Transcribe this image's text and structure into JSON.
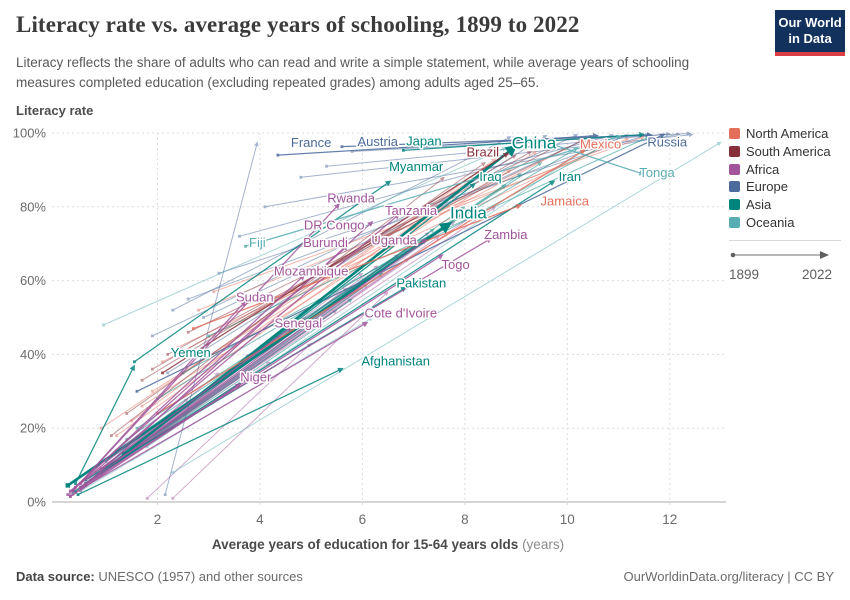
{
  "header": {
    "subtitle": "Literacy reflects the share of adults who can read and write a simple statement, while average years of schooling measures completed education (excluding repeated grades) among adults aged 25–65.",
    "logo": {
      "line1": "Our World",
      "line2": "in Data"
    }
  },
  "legend": {
    "items": [
      {
        "label": "North America",
        "color": "#e56e5a"
      },
      {
        "label": "South America",
        "color": "#883039"
      },
      {
        "label": "Africa",
        "color": "#a2559c"
      },
      {
        "label": "Europe",
        "color": "#4c6a9c"
      },
      {
        "label": "Asia",
        "color": "#00847e"
      },
      {
        "label": "Oceania",
        "color": "#58acb3"
      }
    ],
    "timeline": {
      "start": "1899",
      "end": "2022"
    }
  },
  "chart_data": {
    "type": "connected-scatter",
    "title": "Literacy rate vs. average years of schooling, 1899 to 2022",
    "xlabel": "Average years of education for 15-64 years olds",
    "xlabel_unit": "(years)",
    "ylabel": "Literacy rate",
    "xlim": [
      0,
      13
    ],
    "ylim": [
      0,
      100
    ],
    "xticks": [
      2,
      4,
      6,
      8,
      10,
      12
    ],
    "yticks": [
      0,
      20,
      40,
      60,
      80,
      100
    ],
    "ytick_suffix": "%",
    "grid": true,
    "legend_position": "right",
    "arrow_note": "arrows run from 1899 to 2022",
    "regions": {
      "North America": "#e56e5a",
      "South America": "#883039",
      "Africa": "#a2559c",
      "Europe": "#4c6a9c",
      "Asia": "#00847e",
      "Oceania": "#58acb3"
    },
    "series": [
      {
        "name": "France",
        "region": "Europe",
        "from": [
          4.35,
          94
        ],
        "to": [
          10.6,
          99.3
        ],
        "label_at": [
          5.0,
          97.4
        ]
      },
      {
        "name": "Austria",
        "region": "Europe",
        "from": [
          5.6,
          96.3
        ],
        "to": [
          11.65,
          99.5
        ],
        "label_at": [
          6.3,
          97.6
        ]
      },
      {
        "name": "Russia",
        "region": "Europe",
        "from": [
          1.6,
          30
        ],
        "to": [
          11.9,
          99.7
        ],
        "label_at": [
          11.95,
          97.5
        ]
      },
      {
        "name": "Japan",
        "region": "Asia",
        "from": [
          6.8,
          95.3
        ],
        "to": [
          11.5,
          99.6
        ],
        "label_at": [
          7.2,
          97.8
        ]
      },
      {
        "name": "China",
        "region": "Asia",
        "from": [
          1.35,
          13
        ],
        "to": [
          9.0,
          96.5
        ],
        "label_at": [
          9.35,
          97.3
        ],
        "size": "lg"
      },
      {
        "name": "Myanmar",
        "region": "Asia",
        "from": [
          1.55,
          38
        ],
        "to": [
          6.55,
          87
        ],
        "label_at": [
          7.05,
          90.8
        ]
      },
      {
        "name": "Iraq",
        "region": "Asia",
        "from": [
          0.6,
          5
        ],
        "to": [
          8.2,
          86.3
        ],
        "label_at": [
          8.5,
          88.2
        ]
      },
      {
        "name": "Iran",
        "region": "Asia",
        "from": [
          0.9,
          8
        ],
        "to": [
          9.75,
          87
        ],
        "label_at": [
          10.05,
          88.2
        ]
      },
      {
        "name": "India",
        "region": "Asia",
        "from": [
          0.25,
          4.5
        ],
        "to": [
          7.72,
          75.6
        ],
        "label_at": [
          8.07,
          78.3
        ],
        "size": "lg"
      },
      {
        "name": "Pakistan",
        "region": "Asia",
        "from": [
          0.6,
          6
        ],
        "to": [
          6.85,
          58.2
        ],
        "label_at": [
          7.15,
          59.3
        ]
      },
      {
        "name": "Cote d'Ivoire",
        "region": "Africa",
        "from": [
          0.5,
          3.5
        ],
        "to": [
          6.1,
          48.7
        ],
        "label_at": [
          6.75,
          51.2
        ]
      },
      {
        "name": "Afghanistan",
        "region": "Asia",
        "from": [
          0.45,
          2
        ],
        "to": [
          5.62,
          36.2
        ],
        "label_at": [
          6.65,
          38.2
        ]
      },
      {
        "name": "Yemen",
        "region": "Asia",
        "from": [
          0.4,
          5
        ],
        "to": [
          1.55,
          37
        ],
        "label_at": [
          2.65,
          40.5
        ]
      },
      {
        "name": "Mexico",
        "region": "North America",
        "from": [
          2.0,
          24
        ],
        "to": [
          10.35,
          95.5
        ],
        "label_at": [
          10.65,
          96.9
        ]
      },
      {
        "name": "Jamaica",
        "region": "North America",
        "from": [
          2.7,
          47
        ],
        "to": [
          9.1,
          80.5
        ],
        "label_at": [
          9.95,
          81.5
        ]
      },
      {
        "name": "Brazil",
        "region": "South America",
        "from": [
          2.1,
          35
        ],
        "to": [
          8.85,
          94.6
        ],
        "label_at": [
          8.35,
          94.8
        ]
      },
      {
        "name": "Tonga",
        "region": "Oceania",
        "from": [
          9.4,
          98.3
        ],
        "to": [
          11.5,
          88.8
        ],
        "label_at": [
          11.75,
          89.3
        ]
      },
      {
        "name": "Fiji",
        "region": "Oceania",
        "from": [
          3.72,
          69.3
        ],
        "to": [
          11.05,
          99.2
        ],
        "label_at": [
          3.95,
          70.3
        ]
      },
      {
        "name": "Rwanda",
        "region": "Africa",
        "from": [
          0.35,
          3
        ],
        "to": [
          5.55,
          80.8
        ],
        "label_at": [
          5.78,
          82.3
        ]
      },
      {
        "name": "Tanzania",
        "region": "Africa",
        "from": [
          0.5,
          5
        ],
        "to": [
          6.72,
          78
        ],
        "label_at": [
          6.95,
          79
        ]
      },
      {
        "name": "DR Congo",
        "region": "Africa",
        "from": [
          0.55,
          4
        ],
        "to": [
          6.2,
          76
        ],
        "label_at": [
          5.45,
          75
        ]
      },
      {
        "name": "Uganda",
        "region": "Africa",
        "from": [
          0.6,
          5
        ],
        "to": [
          7.25,
          71.2
        ],
        "label_at": [
          6.62,
          71
        ]
      },
      {
        "name": "Zambia",
        "region": "Africa",
        "from": [
          0.9,
          9
        ],
        "to": [
          8.52,
          71.5
        ],
        "label_at": [
          8.8,
          72.5
        ]
      },
      {
        "name": "Burundi",
        "region": "Africa",
        "from": [
          0.3,
          3
        ],
        "to": [
          5.72,
          69.5
        ],
        "label_at": [
          5.28,
          70.3
        ]
      },
      {
        "name": "Togo",
        "region": "Africa",
        "from": [
          0.5,
          4
        ],
        "to": [
          7.57,
          67
        ],
        "label_at": [
          7.82,
          64.3
        ]
      },
      {
        "name": "Mozambique",
        "region": "Africa",
        "from": [
          0.25,
          2
        ],
        "to": [
          4.87,
          61.5
        ],
        "label_at": [
          5.0,
          62.5
        ]
      },
      {
        "name": "Sudan",
        "region": "Africa",
        "from": [
          0.35,
          3
        ],
        "to": [
          3.72,
          54.5
        ],
        "label_at": [
          3.9,
          55.5
        ]
      },
      {
        "name": "Senegal",
        "region": "Africa",
        "from": [
          0.4,
          4
        ],
        "to": [
          4.62,
          47.5
        ],
        "label_at": [
          4.75,
          48.4
        ]
      },
      {
        "name": "Niger",
        "region": "Africa",
        "from": [
          0.3,
          1.5
        ],
        "to": [
          3.62,
          32
        ],
        "label_at": [
          3.92,
          33.8
        ]
      }
    ],
    "background_lines": [
      {
        "region": "Europe",
        "from": [
          2.15,
          2
        ],
        "to": [
          3.95,
          97.5
        ]
      },
      {
        "region": "Europe",
        "from": [
          1.9,
          45
        ],
        "to": [
          10.2,
          99.6
        ]
      },
      {
        "region": "Europe",
        "from": [
          2.6,
          55
        ],
        "to": [
          11.2,
          99.5
        ]
      },
      {
        "region": "Europe",
        "from": [
          3.2,
          62
        ],
        "to": [
          11.6,
          99.7
        ]
      },
      {
        "region": "Europe",
        "from": [
          2.2,
          35
        ],
        "to": [
          9.6,
          99.4
        ]
      },
      {
        "region": "Europe",
        "from": [
          4.1,
          80
        ],
        "to": [
          12.2,
          99.7
        ]
      },
      {
        "region": "Europe",
        "from": [
          4.8,
          88
        ],
        "to": [
          12.45,
          99.6
        ]
      },
      {
        "region": "Europe",
        "from": [
          3.6,
          72
        ],
        "to": [
          10.9,
          99.5
        ]
      },
      {
        "region": "Europe",
        "from": [
          5.3,
          91
        ],
        "to": [
          12.0,
          99.8
        ]
      },
      {
        "region": "Europe",
        "from": [
          2.9,
          50
        ],
        "to": [
          10.5,
          99.3
        ]
      },
      {
        "region": "Europe",
        "from": [
          5.8,
          95
        ],
        "to": [
          12.4,
          99.9
        ]
      },
      {
        "region": "Europe",
        "from": [
          2.3,
          52
        ],
        "to": [
          8.9,
          99
        ]
      },
      {
        "region": "North America",
        "from": [
          1.5,
          22
        ],
        "to": [
          8.6,
          93
        ]
      },
      {
        "region": "North America",
        "from": [
          2.4,
          42
        ],
        "to": [
          10.8,
          97
        ]
      },
      {
        "region": "North America",
        "from": [
          1.9,
          30
        ],
        "to": [
          9.4,
          95
        ]
      },
      {
        "region": "North America",
        "from": [
          2.8,
          52
        ],
        "to": [
          11.2,
          98.5
        ]
      },
      {
        "region": "North America",
        "from": [
          1.2,
          18
        ],
        "to": [
          7.8,
          83
        ]
      },
      {
        "region": "North America",
        "from": [
          3.1,
          57
        ],
        "to": [
          11.5,
          99
        ]
      },
      {
        "region": "North America",
        "from": [
          2.1,
          38
        ],
        "to": [
          10.0,
          96
        ]
      },
      {
        "region": "North America",
        "from": [
          1.7,
          26
        ],
        "to": [
          8.9,
          90
        ]
      },
      {
        "region": "North America",
        "from": [
          0.9,
          20
        ],
        "to": [
          8.2,
          88
        ]
      },
      {
        "region": "South America",
        "from": [
          1.7,
          33
        ],
        "to": [
          9.0,
          94
        ]
      },
      {
        "region": "South America",
        "from": [
          2.2,
          40
        ],
        "to": [
          9.8,
          96.5
        ]
      },
      {
        "region": "South America",
        "from": [
          1.4,
          24
        ],
        "to": [
          8.4,
          92
        ]
      },
      {
        "region": "South America",
        "from": [
          2.6,
          46
        ],
        "to": [
          10.3,
          98
        ]
      },
      {
        "region": "South America",
        "from": [
          1.1,
          18
        ],
        "to": [
          7.6,
          88
        ]
      },
      {
        "region": "South America",
        "from": [
          1.9,
          36
        ],
        "to": [
          9.3,
          95
        ]
      },
      {
        "region": "Africa",
        "from": [
          0.3,
          2
        ],
        "to": [
          3.2,
          35
        ]
      },
      {
        "region": "Africa",
        "from": [
          0.5,
          4
        ],
        "to": [
          4.4,
          45
        ]
      },
      {
        "region": "Africa",
        "from": [
          0.7,
          6
        ],
        "to": [
          5.2,
          55
        ]
      },
      {
        "region": "Africa",
        "from": [
          0.4,
          3
        ],
        "to": [
          6.0,
          62
        ]
      },
      {
        "region": "Africa",
        "from": [
          0.9,
          8
        ],
        "to": [
          6.7,
          67
        ]
      },
      {
        "region": "Africa",
        "from": [
          0.6,
          5
        ],
        "to": [
          5.7,
          58
        ]
      },
      {
        "region": "Africa",
        "from": [
          1.1,
          10
        ],
        "to": [
          7.3,
          73
        ]
      },
      {
        "region": "Africa",
        "from": [
          0.3,
          1.5
        ],
        "to": [
          2.6,
          28
        ]
      },
      {
        "region": "Africa",
        "from": [
          0.8,
          7
        ],
        "to": [
          6.3,
          64
        ]
      },
      {
        "region": "Africa",
        "from": [
          1.3,
          12
        ],
        "to": [
          7.8,
          76
        ]
      },
      {
        "region": "Africa",
        "from": [
          0.5,
          3
        ],
        "to": [
          4.9,
          50
        ]
      },
      {
        "region": "Africa",
        "from": [
          1.0,
          9
        ],
        "to": [
          7.0,
          70
        ]
      },
      {
        "region": "Africa",
        "from": [
          0.4,
          2.5
        ],
        "to": [
          3.8,
          40
        ]
      },
      {
        "region": "Africa",
        "from": [
          1.5,
          14
        ],
        "to": [
          8.2,
          78
        ]
      },
      {
        "region": "Africa",
        "from": [
          0.6,
          4.5
        ],
        "to": [
          5.5,
          52
        ]
      },
      {
        "region": "Africa",
        "from": [
          1.8,
          1
        ],
        "to": [
          5.0,
          43
        ]
      },
      {
        "region": "Africa",
        "from": [
          0.9,
          7.5
        ],
        "to": [
          6.9,
          66
        ]
      },
      {
        "region": "Africa",
        "from": [
          1.2,
          11
        ],
        "to": [
          7.5,
          72
        ]
      },
      {
        "region": "Africa",
        "from": [
          0.35,
          2
        ],
        "to": [
          4.2,
          38
        ]
      },
      {
        "region": "Africa",
        "from": [
          0.7,
          5.5
        ],
        "to": [
          6.1,
          59
        ]
      },
      {
        "region": "Africa",
        "from": [
          2.3,
          1
        ],
        "to": [
          6.5,
          57
        ]
      },
      {
        "region": "Africa",
        "from": [
          1.6,
          15
        ],
        "to": [
          8.6,
          80
        ]
      },
      {
        "region": "Asia",
        "from": [
          0.5,
          4
        ],
        "to": [
          6.4,
          62
        ]
      },
      {
        "region": "Asia",
        "from": [
          0.8,
          8
        ],
        "to": [
          7.4,
          74
        ]
      },
      {
        "region": "Asia",
        "from": [
          1.2,
          14
        ],
        "to": [
          8.8,
          86
        ]
      },
      {
        "region": "Asia",
        "from": [
          1.6,
          20
        ],
        "to": [
          9.5,
          92
        ]
      },
      {
        "region": "Asia",
        "from": [
          0.4,
          3
        ],
        "to": [
          5.8,
          55
        ]
      },
      {
        "region": "Asia",
        "from": [
          2.0,
          28
        ],
        "to": [
          10.2,
          96
        ]
      },
      {
        "region": "Asia",
        "from": [
          1.0,
          11
        ],
        "to": [
          8.0,
          80
        ]
      },
      {
        "region": "Asia",
        "from": [
          2.5,
          35
        ],
        "to": [
          10.9,
          98
        ]
      },
      {
        "region": "Asia",
        "from": [
          0.6,
          5
        ],
        "to": [
          6.9,
          68
        ]
      },
      {
        "region": "Asia",
        "from": [
          3.0,
          45
        ],
        "to": [
          11.6,
          99
        ]
      },
      {
        "region": "Asia",
        "from": [
          1.4,
          17
        ],
        "to": [
          9.1,
          89
        ]
      },
      {
        "region": "Asia",
        "from": [
          0.35,
          2.5
        ],
        "to": [
          5.2,
          48
        ]
      },
      {
        "region": "Oceania",
        "from": [
          2.3,
          8
        ],
        "to": [
          13.0,
          97.5
        ]
      },
      {
        "region": "Oceania",
        "from": [
          0.95,
          48
        ],
        "to": [
          8.8,
          96
        ]
      },
      {
        "region": "Oceania",
        "from": [
          1.8,
          15
        ],
        "to": [
          10.5,
          97
        ]
      },
      {
        "region": "Oceania",
        "from": [
          0.5,
          3
        ],
        "to": [
          6.2,
          50
        ]
      }
    ]
  },
  "footer": {
    "source_prefix": "Data source:",
    "source": " UNESCO (1957) and other sources",
    "license": "OurWorldinData.org/literacy | CC BY"
  }
}
